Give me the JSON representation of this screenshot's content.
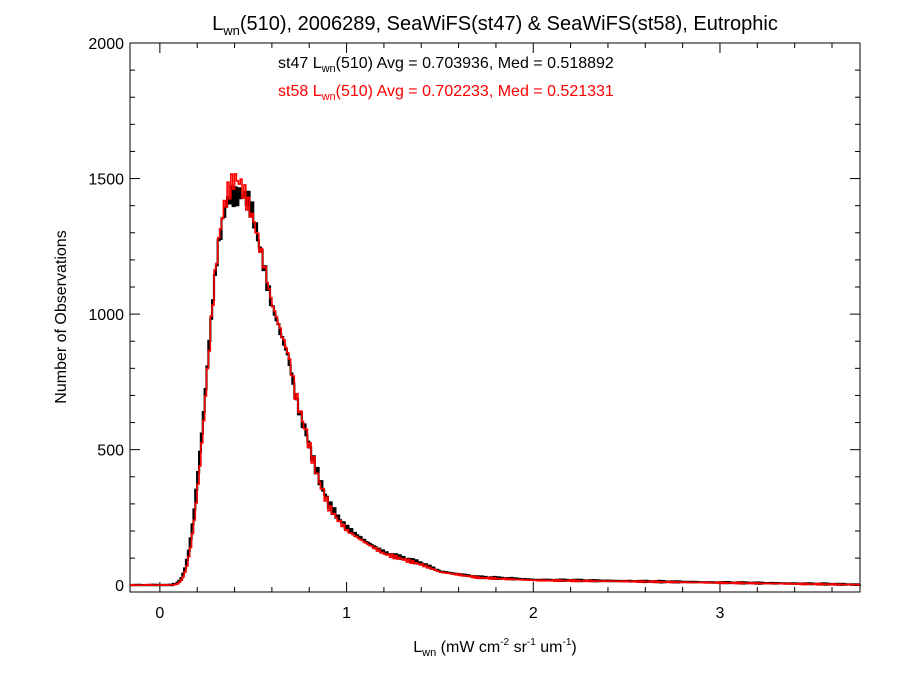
{
  "chart_data": {
    "type": "line",
    "title": {
      "main": "L",
      "sub": "wn",
      "rest": "(510), 2006289, SeaWiFS(st47) & SeaWiFS(st58), Eutrophic"
    },
    "xlabel": {
      "main": "L",
      "sub": "wn",
      "part1": " (mW cm",
      "sup1": "-2",
      "part2": " sr",
      "sup2": "-1",
      "part3": " um",
      "sup3": "-1",
      "part4": ")"
    },
    "ylabel": "Number of Observations",
    "xlim": [
      -0.16,
      3.75
    ],
    "ylim": [
      -25,
      2000
    ],
    "xticks": [
      0,
      1,
      2,
      3
    ],
    "yticks": [
      0,
      500,
      1000,
      1500,
      2000
    ],
    "xtick_labels": [
      "0",
      "1",
      "2",
      "3"
    ],
    "ytick_labels": [
      "0",
      "500",
      "1000",
      "1500",
      "2000"
    ],
    "annotations": [
      {
        "prefix": "st47 L",
        "sub": "wn",
        "suffix": "(510) Avg = 0.703936, Med = 0.518892",
        "color": "#000000"
      },
      {
        "prefix": "st58 L",
        "sub": "wn",
        "suffix": "(510) Avg = 0.702233, Med = 0.521331",
        "color": "#ff0000"
      }
    ],
    "bin_width": 0.01,
    "series": [
      {
        "color": "#000000",
        "x": [
          -0.16,
          0.05,
          0.08,
          0.1,
          0.12,
          0.14,
          0.16,
          0.18,
          0.2,
          0.22,
          0.24,
          0.26,
          0.28,
          0.3,
          0.32,
          0.34,
          0.36,
          0.38,
          0.4,
          0.42,
          0.44,
          0.46,
          0.48,
          0.5,
          0.52,
          0.54,
          0.56,
          0.58,
          0.6,
          0.62,
          0.65,
          0.68,
          0.7,
          0.72,
          0.75,
          0.78,
          0.8,
          0.85,
          0.9,
          0.95,
          1.0,
          1.1,
          1.2,
          1.3,
          1.4,
          1.5,
          1.7,
          2.0,
          2.5,
          3.0,
          3.5,
          3.75
        ],
        "values": [
          0,
          0,
          5,
          15,
          40,
          90,
          170,
          280,
          420,
          560,
          720,
          900,
          1060,
          1200,
          1300,
          1370,
          1420,
          1440,
          1430,
          1440,
          1440,
          1430,
          1400,
          1350,
          1280,
          1220,
          1150,
          1080,
          1020,
          980,
          910,
          850,
          780,
          700,
          620,
          560,
          500,
          390,
          300,
          250,
          210,
          160,
          120,
          100,
          80,
          50,
          30,
          20,
          15,
          10,
          5,
          2
        ]
      },
      {
        "color": "#ff0000",
        "x": [
          -0.16,
          0.05,
          0.08,
          0.1,
          0.12,
          0.14,
          0.16,
          0.18,
          0.2,
          0.22,
          0.24,
          0.26,
          0.28,
          0.3,
          0.32,
          0.34,
          0.36,
          0.38,
          0.4,
          0.42,
          0.44,
          0.46,
          0.48,
          0.5,
          0.52,
          0.54,
          0.56,
          0.58,
          0.6,
          0.62,
          0.65,
          0.68,
          0.7,
          0.72,
          0.75,
          0.78,
          0.8,
          0.85,
          0.9,
          0.95,
          1.0,
          1.1,
          1.2,
          1.3,
          1.4,
          1.5,
          1.7,
          2.0,
          2.5,
          3.0,
          3.5,
          3.75
        ],
        "values": [
          0,
          0,
          3,
          10,
          30,
          70,
          140,
          240,
          370,
          520,
          700,
          880,
          1060,
          1210,
          1320,
          1400,
          1450,
          1480,
          1500,
          1490,
          1460,
          1420,
          1380,
          1340,
          1280,
          1220,
          1160,
          1090,
          1030,
          990,
          920,
          860,
          790,
          710,
          630,
          560,
          500,
          380,
          290,
          240,
          200,
          155,
          115,
          95,
          75,
          48,
          28,
          18,
          14,
          9,
          4,
          2
        ]
      }
    ]
  }
}
